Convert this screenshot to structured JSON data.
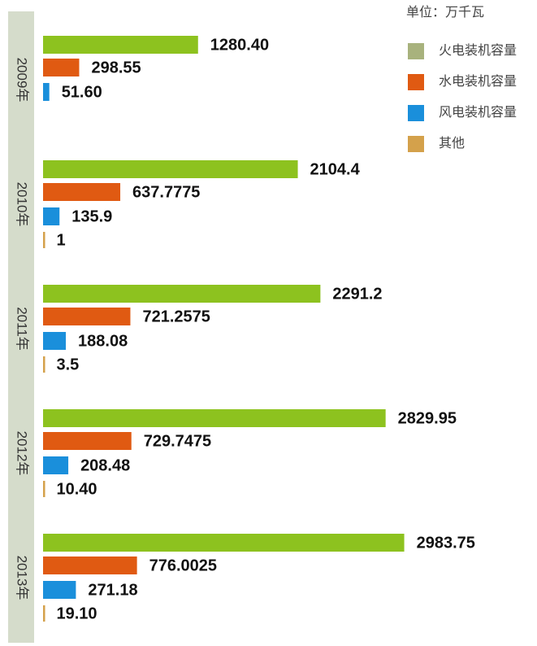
{
  "chart_data": {
    "type": "bar",
    "orientation": "horizontal",
    "unit": "单位：万千瓦",
    "categories": [
      "2009年",
      "2010年",
      "2011年",
      "2012年",
      "2013年"
    ],
    "series": [
      {
        "name": "火电装机容量",
        "color": "#8dc21f",
        "values": [
          1280.4,
          2104.4,
          2291.2,
          2829.95,
          2983.75
        ],
        "value_labels": [
          "1280.40",
          "2104.4",
          "2291.2",
          "2829.95",
          "2983.75"
        ]
      },
      {
        "name": "水电装机容量",
        "color": "#e05a12",
        "values": [
          298.55,
          637.7775,
          721.2575,
          729.7475,
          776.0025
        ],
        "value_labels": [
          "298.55",
          "637.7775",
          "721.2575",
          "729.7475",
          "776.0025"
        ]
      },
      {
        "name": "风电装机容量",
        "color": "#1a8fdb",
        "values": [
          51.6,
          135.9,
          188.08,
          208.48,
          271.18
        ],
        "value_labels": [
          "51.60",
          "135.9",
          "188.08",
          "208.48",
          "271.18"
        ]
      },
      {
        "name": "其他",
        "color": "#d4a14b",
        "values": [
          null,
          1,
          3.5,
          10.4,
          19.1
        ],
        "value_labels": [
          null,
          "1",
          "3.5",
          "10.40",
          "19.10"
        ]
      }
    ]
  }
}
